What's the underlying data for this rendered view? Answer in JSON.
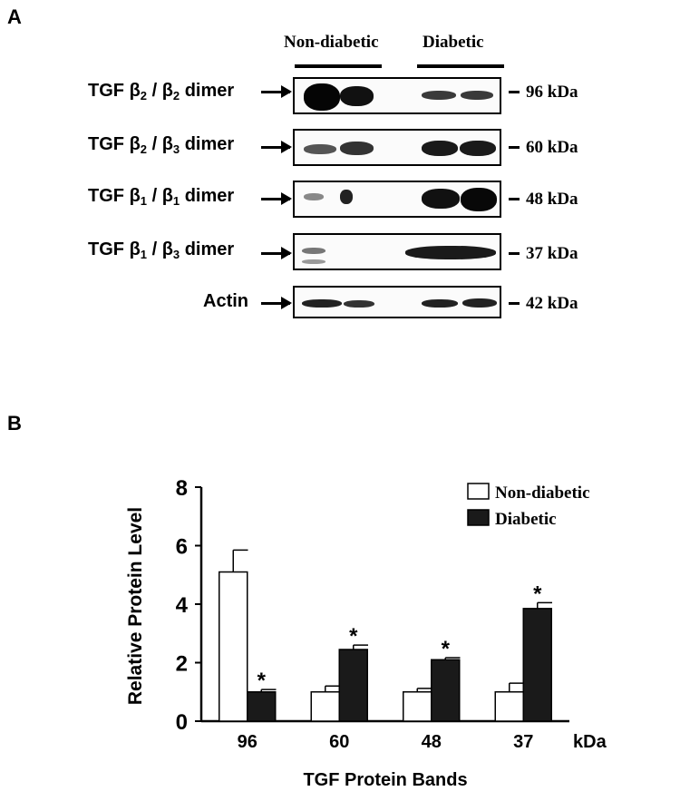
{
  "panelA": {
    "label": "A",
    "groups": [
      "Non-diabetic",
      "Diabetic"
    ],
    "tgf": "TGF",
    "dimer": "dimer",
    "beta": "β",
    "rows": [
      {
        "sub1": "2",
        "sep": " / ",
        "sub2": "2",
        "mw": "96 kDa"
      },
      {
        "sub1": "2",
        "sep": " / ",
        "sub2": "3",
        "mw": "60 kDa"
      },
      {
        "sub1": "1",
        "sep": " / ",
        "sub2": "1",
        "mw": "48 kDa"
      },
      {
        "sub1": "1",
        "sep": " / ",
        "sub2": "3",
        "mw": "37 kDa"
      }
    ],
    "actin": {
      "label": "Actin",
      "mw": "42 kDa"
    }
  },
  "panelB": {
    "label": "B"
  },
  "chart_data": {
    "type": "bar",
    "categories": [
      "96",
      "60",
      "48",
      "37"
    ],
    "x_unit": "kDa",
    "series": [
      {
        "name": "Non-diabetic",
        "values": [
          5.1,
          1.0,
          1.0,
          1.0
        ],
        "errors": [
          0.75,
          0.2,
          0.12,
          0.3
        ],
        "color": "#ffffff"
      },
      {
        "name": "Diabetic",
        "values": [
          1.0,
          2.45,
          2.1,
          3.85
        ],
        "errors": [
          0.08,
          0.15,
          0.07,
          0.2
        ],
        "color": "#1a1a1a"
      }
    ],
    "significance": [
      "*",
      "*",
      "*",
      "*"
    ],
    "ylim": [
      0,
      8
    ],
    "yticks": [
      0,
      2,
      4,
      6,
      8
    ],
    "xlabel": "TGF Protein Bands",
    "ylabel": "Relative Protein Level",
    "legend_position": "top-right"
  }
}
